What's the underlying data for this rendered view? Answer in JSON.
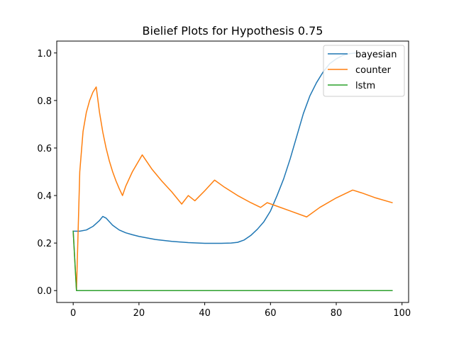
{
  "chart_data": {
    "type": "line",
    "title": "Bielief Plots for Hypothesis 0.75",
    "xlabel": "",
    "ylabel": "",
    "xlim": [
      -5,
      102
    ],
    "ylim": [
      -0.05,
      1.05
    ],
    "x_ticks": [
      0,
      20,
      40,
      60,
      80,
      100
    ],
    "y_ticks": [
      0.0,
      0.2,
      0.4,
      0.6,
      0.8,
      1.0
    ],
    "x_tick_labels": [
      "0",
      "20",
      "40",
      "60",
      "80",
      "100"
    ],
    "y_tick_labels": [
      "0.0",
      "0.2",
      "0.4",
      "0.6",
      "0.8",
      "1.0"
    ],
    "grid": false,
    "legend_position": "top-right",
    "series": [
      {
        "name": "bayesian",
        "color": "#1f77b4",
        "points": [
          [
            0,
            0.25
          ],
          [
            2,
            0.25
          ],
          [
            4,
            0.255
          ],
          [
            6,
            0.27
          ],
          [
            8,
            0.295
          ],
          [
            9,
            0.312
          ],
          [
            10,
            0.305
          ],
          [
            11,
            0.29
          ],
          [
            12,
            0.275
          ],
          [
            14,
            0.255
          ],
          [
            16,
            0.243
          ],
          [
            18,
            0.235
          ],
          [
            20,
            0.228
          ],
          [
            25,
            0.215
          ],
          [
            30,
            0.207
          ],
          [
            35,
            0.202
          ],
          [
            40,
            0.199
          ],
          [
            45,
            0.199
          ],
          [
            48,
            0.2
          ],
          [
            50,
            0.203
          ],
          [
            52,
            0.213
          ],
          [
            54,
            0.232
          ],
          [
            56,
            0.258
          ],
          [
            58,
            0.29
          ],
          [
            60,
            0.335
          ],
          [
            62,
            0.4
          ],
          [
            64,
            0.47
          ],
          [
            66,
            0.555
          ],
          [
            68,
            0.65
          ],
          [
            70,
            0.745
          ],
          [
            72,
            0.82
          ],
          [
            74,
            0.875
          ],
          [
            76,
            0.92
          ],
          [
            78,
            0.955
          ],
          [
            80,
            0.975
          ],
          [
            82,
            0.99
          ],
          [
            84,
            0.997
          ],
          [
            86,
            1.0
          ]
        ]
      },
      {
        "name": "counter",
        "color": "#ff7f0e",
        "points": [
          [
            0,
            0.25
          ],
          [
            1,
            0.0
          ],
          [
            2,
            0.5
          ],
          [
            3,
            0.67
          ],
          [
            4,
            0.75
          ],
          [
            5,
            0.8
          ],
          [
            6,
            0.835
          ],
          [
            7,
            0.857
          ],
          [
            8,
            0.75
          ],
          [
            9,
            0.667
          ],
          [
            10,
            0.6
          ],
          [
            11,
            0.545
          ],
          [
            12,
            0.5
          ],
          [
            13,
            0.462
          ],
          [
            14,
            0.429
          ],
          [
            15,
            0.4
          ],
          [
            16,
            0.44
          ],
          [
            18,
            0.5
          ],
          [
            21,
            0.571
          ],
          [
            24,
            0.51
          ],
          [
            27,
            0.46
          ],
          [
            30,
            0.415
          ],
          [
            33,
            0.364
          ],
          [
            35,
            0.4
          ],
          [
            37,
            0.378
          ],
          [
            40,
            0.42
          ],
          [
            43,
            0.465
          ],
          [
            46,
            0.435
          ],
          [
            50,
            0.4
          ],
          [
            54,
            0.37
          ],
          [
            57,
            0.35
          ],
          [
            59,
            0.37
          ],
          [
            62,
            0.355
          ],
          [
            66,
            0.335
          ],
          [
            71,
            0.31
          ],
          [
            75,
            0.35
          ],
          [
            80,
            0.39
          ],
          [
            85,
            0.423
          ],
          [
            88,
            0.41
          ],
          [
            92,
            0.39
          ],
          [
            97,
            0.37
          ]
        ]
      },
      {
        "name": "lstm",
        "color": "#2ca02c",
        "points": [
          [
            0,
            0.25
          ],
          [
            1,
            0.0
          ],
          [
            97,
            0.0
          ]
        ]
      }
    ]
  }
}
